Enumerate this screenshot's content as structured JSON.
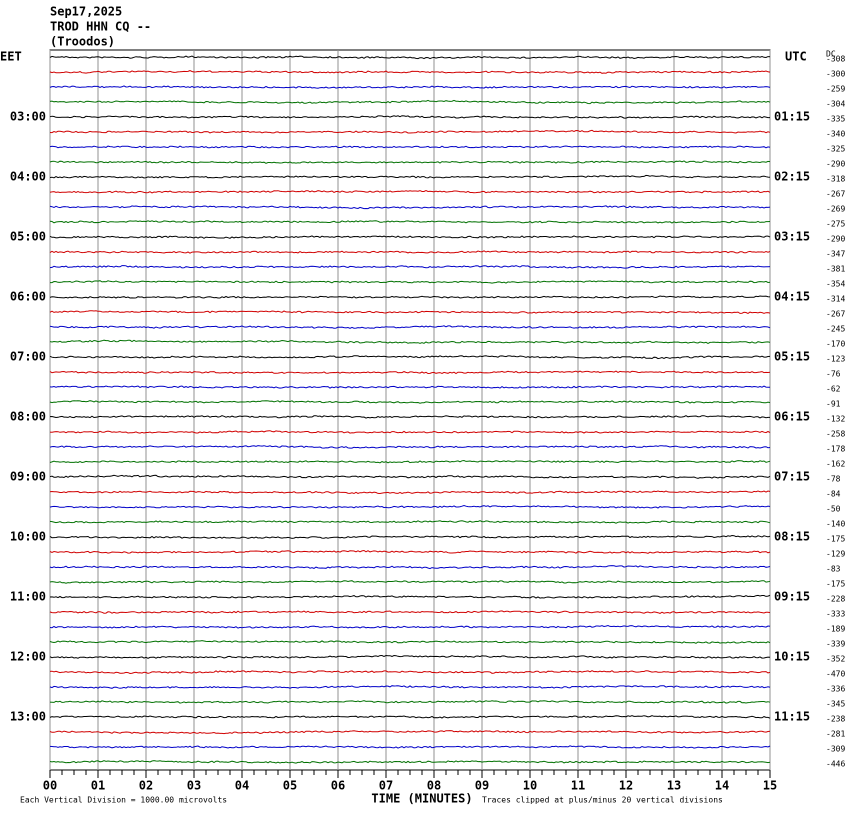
{
  "chart_data": {
    "type": "helicorder",
    "date": "Sep17,2025",
    "station": "TROD HHN CQ --",
    "location": "(Troodos)",
    "left_axis_label": "EET",
    "right_axis_label": "UTC",
    "dc_label": "DC",
    "left_times": [
      "03:00",
      "04:00",
      "05:00",
      "06:00",
      "07:00",
      "08:00",
      "09:00",
      "10:00",
      "11:00",
      "12:00",
      "13:00"
    ],
    "right_times": [
      "01:15",
      "02:15",
      "03:15",
      "04:15",
      "05:15",
      "06:15",
      "07:15",
      "08:15",
      "09:15",
      "10:15",
      "11:15"
    ],
    "dc_offsets": [
      -308,
      -300,
      -259,
      -304,
      -335,
      -340,
      -325,
      -290,
      -318,
      -267,
      -269,
      -275,
      -290,
      -347,
      -381,
      -354,
      -314,
      -267,
      -245,
      -170,
      -123,
      -76,
      -62,
      -91,
      -132,
      -258,
      -178,
      -162,
      -78,
      -84,
      -50,
      -140,
      -175,
      -129,
      -83,
      -175,
      -228,
      -333,
      -189,
      -339,
      -352,
      -470,
      -336,
      -345,
      -238,
      -281,
      -309,
      -446
    ],
    "trace_colors": [
      "#000000",
      "#d00000",
      "#0000c8",
      "#007000"
    ],
    "xlim": [
      0,
      15
    ],
    "xticks": [
      {
        "value": 0,
        "label": "00"
      },
      {
        "value": 1,
        "label": "01"
      },
      {
        "value": 2,
        "label": "02"
      },
      {
        "value": 3,
        "label": "03"
      },
      {
        "value": 4,
        "label": "04"
      },
      {
        "value": 5,
        "label": "05"
      },
      {
        "value": 6,
        "label": "06"
      },
      {
        "value": 7,
        "label": "07"
      },
      {
        "value": 8,
        "label": "08"
      },
      {
        "value": 9,
        "label": "09"
      },
      {
        "value": 10,
        "label": "10"
      },
      {
        "value": 11,
        "label": "11"
      },
      {
        "value": 12,
        "label": "12"
      },
      {
        "value": 13,
        "label": "13"
      },
      {
        "value": 14,
        "label": "14"
      },
      15
    ],
    "xlabel": "TIME (MINUTES)",
    "scale_note": "Each Vertical Division = 1000.00 microvolts",
    "clip_note": "Traces clipped at plus/minus 20 vertical divisions"
  }
}
